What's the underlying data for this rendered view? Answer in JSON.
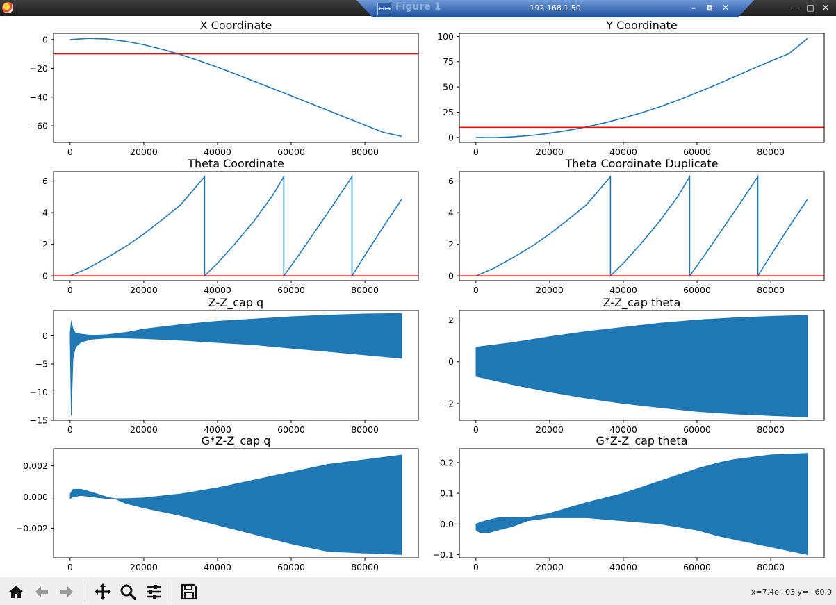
{
  "window": {
    "title": "Figure 1",
    "remote_host": "192.168.1.50",
    "controls": [
      "minimize",
      "maximize",
      "close"
    ]
  },
  "toolbar": {
    "buttons": [
      "home-icon",
      "back-arrow-icon",
      "forward-arrow-icon",
      "pan-icon",
      "zoom-icon",
      "configure-subplots-icon",
      "save-icon"
    ],
    "coordinates": "x=7.4e+03 y=−60.0"
  },
  "colors": {
    "line": "#1f77b4",
    "threshold": "#ff0000"
  },
  "chart_data": [
    {
      "type": "line",
      "title": "X Coordinate",
      "xlim": [
        -4500,
        94500
      ],
      "ylim": [
        -71.5,
        4.3
      ],
      "xticks": [
        0,
        20000,
        40000,
        60000,
        80000
      ],
      "xtick_labels": [
        "0",
        "20000",
        "40000",
        "60000",
        "80000"
      ],
      "yticks": [
        0,
        -20,
        -40,
        -60
      ],
      "ytick_labels": [
        "0",
        "−20",
        "−40",
        "−60"
      ],
      "series": [
        {
          "x": [
            0,
            5000,
            10000,
            15000,
            20000,
            25000,
            30000,
            35000,
            40000,
            45000,
            50000,
            55000,
            60000,
            65000,
            70000,
            75000,
            80000,
            85000,
            90000
          ],
          "y": [
            0,
            0.8,
            0.4,
            -1.2,
            -3.6,
            -6.8,
            -10.5,
            -14.7,
            -19.2,
            -24.1,
            -29.1,
            -34.1,
            -39.1,
            -44.2,
            -49.3,
            -54.4,
            -59.5,
            -64.5,
            -67.3
          ]
        }
      ],
      "hline": -10
    },
    {
      "type": "line",
      "title": "Y Coordinate",
      "xlim": [
        -4500,
        94500
      ],
      "ylim": [
        -4.9,
        103
      ],
      "xticks": [
        0,
        20000,
        40000,
        60000,
        80000
      ],
      "xtick_labels": [
        "0",
        "20000",
        "40000",
        "60000",
        "80000"
      ],
      "yticks": [
        0,
        25,
        50,
        75,
        100
      ],
      "ytick_labels": [
        "0",
        "25",
        "50",
        "75",
        "100"
      ],
      "series": [
        {
          "x": [
            0,
            5000,
            10000,
            15000,
            20000,
            25000,
            30000,
            35000,
            40000,
            45000,
            50000,
            55000,
            60000,
            65000,
            70000,
            75000,
            80000,
            85000,
            90000
          ],
          "y": [
            0,
            -0.2,
            0.5,
            2,
            4.2,
            7,
            10.5,
            14.5,
            19.2,
            24.5,
            30.4,
            37,
            44.3,
            51.8,
            59.8,
            67.8,
            75.5,
            83,
            98
          ]
        }
      ],
      "hline": 10
    },
    {
      "type": "line",
      "title": "Theta Coordinate",
      "xlim": [
        -4500,
        94500
      ],
      "ylim": [
        -0.3,
        6.6
      ],
      "xticks": [
        0,
        20000,
        40000,
        60000,
        80000
      ],
      "xtick_labels": [
        "0",
        "20000",
        "40000",
        "60000",
        "80000"
      ],
      "yticks": [
        0,
        2,
        4,
        6
      ],
      "ytick_labels": [
        "0",
        "2",
        "4",
        "6"
      ],
      "series": [
        {
          "x": [
            0,
            5000,
            10000,
            15000,
            20000,
            25000,
            30000,
            36500,
            36500,
            40000,
            45000,
            50000,
            55000,
            58000,
            58000,
            62000,
            67000,
            72000,
            76500,
            76500,
            80000,
            85000,
            90000
          ],
          "y": [
            0,
            0.5,
            1.15,
            1.85,
            2.65,
            3.55,
            4.5,
            6.28,
            0,
            0.8,
            2.1,
            3.5,
            5.1,
            6.28,
            0,
            1.3,
            3,
            4.7,
            6.28,
            0,
            1.3,
            3.1,
            4.85
          ]
        }
      ],
      "hline": 0
    },
    {
      "type": "line",
      "title": "Theta Coordinate Duplicate",
      "xlim": [
        -4500,
        94500
      ],
      "ylim": [
        -0.3,
        6.6
      ],
      "xticks": [
        0,
        20000,
        40000,
        60000,
        80000
      ],
      "xtick_labels": [
        "0",
        "20000",
        "40000",
        "60000",
        "80000"
      ],
      "yticks": [
        0,
        2,
        4,
        6
      ],
      "ytick_labels": [
        "0",
        "2",
        "4",
        "6"
      ],
      "series": [
        {
          "x": [
            0,
            5000,
            10000,
            15000,
            20000,
            25000,
            30000,
            36500,
            36500,
            40000,
            45000,
            50000,
            55000,
            58000,
            58000,
            62000,
            67000,
            72000,
            76500,
            76500,
            80000,
            85000,
            90000
          ],
          "y": [
            0,
            0.5,
            1.15,
            1.85,
            2.65,
            3.55,
            4.5,
            6.28,
            0,
            0.8,
            2.1,
            3.5,
            5.1,
            6.28,
            0,
            1.3,
            3,
            4.7,
            6.28,
            0,
            1.3,
            3.1,
            4.85
          ]
        }
      ],
      "hline": 0
    },
    {
      "type": "area",
      "title": "Z-Z_cap q",
      "xlim": [
        -4500,
        94500
      ],
      "ylim": [
        -15,
        4.5
      ],
      "xticks": [
        0,
        20000,
        40000,
        60000,
        80000
      ],
      "xtick_labels": [
        "0",
        "20000",
        "40000",
        "60000",
        "80000"
      ],
      "yticks": [
        0,
        -5,
        -10,
        -15
      ],
      "ytick_labels": [
        "0",
        "−5",
        "−10",
        "−15"
      ],
      "series": [
        {
          "x": [
            0,
            300,
            800,
            1500,
            3000,
            6000,
            10000,
            15000,
            20000,
            30000,
            40000,
            50000,
            60000,
            70000,
            80000,
            90000
          ],
          "upper": [
            0.5,
            2.6,
            1.2,
            0.5,
            0.3,
            0.1,
            0.2,
            0.6,
            1.2,
            2.0,
            2.6,
            3.0,
            3.4,
            3.7,
            3.9,
            4.0
          ],
          "lower": [
            -0.5,
            -14.2,
            -4.0,
            -2.0,
            -1.1,
            -0.6,
            -0.4,
            -0.4,
            -0.5,
            -0.8,
            -1.2,
            -1.6,
            -2.2,
            -2.8,
            -3.4,
            -4.0
          ]
        }
      ]
    },
    {
      "type": "area",
      "title": "Z-Z_cap theta",
      "xlim": [
        -4500,
        94500
      ],
      "ylim": [
        -2.8,
        2.45
      ],
      "xticks": [
        0,
        20000,
        40000,
        60000,
        80000
      ],
      "xtick_labels": [
        "0",
        "20000",
        "40000",
        "60000",
        "80000"
      ],
      "yticks": [
        2,
        0,
        -2
      ],
      "ytick_labels": [
        "2",
        "0",
        "−2"
      ],
      "series": [
        {
          "x": [
            0,
            10000,
            20000,
            30000,
            40000,
            50000,
            60000,
            70000,
            80000,
            90000
          ],
          "upper": [
            0.7,
            0.92,
            1.2,
            1.45,
            1.65,
            1.85,
            2.0,
            2.1,
            2.17,
            2.22
          ],
          "lower": [
            -0.7,
            -1.1,
            -1.45,
            -1.75,
            -2.0,
            -2.2,
            -2.38,
            -2.5,
            -2.58,
            -2.65
          ]
        }
      ]
    },
    {
      "type": "area",
      "title": "G*Z-Z_cap q",
      "xlim": [
        -4500,
        94500
      ],
      "ylim": [
        -0.0039,
        0.0031
      ],
      "xticks": [
        0,
        20000,
        40000,
        60000,
        80000
      ],
      "xtick_labels": [
        "0",
        "20000",
        "40000",
        "60000",
        "80000"
      ],
      "yticks": [
        0.002,
        0,
        -0.002
      ],
      "ytick_labels": [
        "0.002",
        "0.000",
        "−0.002"
      ],
      "series": [
        {
          "x": [
            0,
            800,
            3000,
            6000,
            10000,
            12000,
            15000,
            20000,
            30000,
            40000,
            50000,
            60000,
            70000,
            80000,
            90000
          ],
          "upper": [
            0.0002,
            0.0005,
            0.0005,
            0.0003,
            0.0,
            -0.0001,
            -0.0001,
            -5e-05,
            0.0002,
            0.0006,
            0.0011,
            0.0016,
            0.0021,
            0.0024,
            0.0027
          ],
          "lower": [
            -0.0001,
            0.0,
            0.0001,
            0.0,
            -0.0001,
            -0.0001,
            -0.0004,
            -0.0007,
            -0.0012,
            -0.0018,
            -0.0024,
            -0.003,
            -0.0035,
            -0.0036,
            -0.0037
          ]
        }
      ]
    },
    {
      "type": "area",
      "title": "G*Z-Z_cap theta",
      "xlim": [
        -4500,
        94500
      ],
      "ylim": [
        -0.11,
        0.245
      ],
      "xticks": [
        0,
        20000,
        40000,
        60000,
        80000
      ],
      "xtick_labels": [
        "0",
        "20000",
        "40000",
        "60000",
        "80000"
      ],
      "yticks": [
        0.2,
        0.1,
        0,
        -0.1
      ],
      "ytick_labels": [
        "0.2",
        "0.1",
        "0.0",
        "−0.1"
      ],
      "series": [
        {
          "x": [
            0,
            1000,
            3000,
            6000,
            10000,
            14000,
            20000,
            30000,
            40000,
            50000,
            60000,
            66000,
            70000,
            80000,
            90000
          ],
          "upper": [
            0.0,
            0.005,
            0.012,
            0.02,
            0.022,
            0.021,
            0.035,
            0.07,
            0.1,
            0.14,
            0.18,
            0.2,
            0.21,
            0.225,
            0.23
          ],
          "lower": [
            -0.02,
            -0.028,
            -0.03,
            -0.02,
            -0.008,
            0.01,
            0.02,
            0.02,
            0.01,
            0.0,
            -0.02,
            -0.04,
            -0.05,
            -0.075,
            -0.1
          ]
        }
      ]
    }
  ]
}
